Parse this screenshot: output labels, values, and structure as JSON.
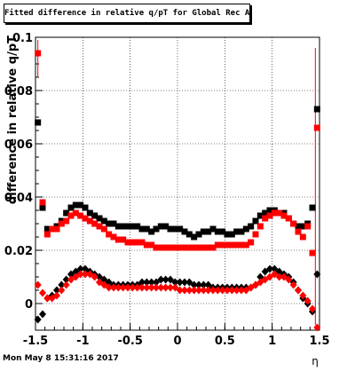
{
  "chart_data": {
    "type": "scatter",
    "title": "Fitted difference in relative q/pT for Global Rec All EtapT",
    "xlabel": "η",
    "ylabel": "difference in relative q/pT",
    "xlim": [
      -1.5,
      1.5
    ],
    "ylim": [
      -0.01,
      0.1
    ],
    "x_ticks": [
      -1.5,
      -1,
      -0.5,
      0,
      0.5,
      1,
      1.5
    ],
    "x_tick_labels": [
      "-1.5",
      "-1",
      "-0.5",
      "0",
      "0.5",
      "1",
      "1.5"
    ],
    "y_ticks": [
      0,
      0.02,
      0.04,
      0.06,
      0.08,
      0.1
    ],
    "y_tick_labels": [
      "0",
      "0.02",
      "0.04",
      "0.06",
      "0.08",
      "0.1"
    ],
    "grid": true,
    "series": [
      {
        "color": "#000000",
        "marker": "square",
        "x": [
          -1.475,
          -1.425,
          -1.375,
          -1.325,
          -1.275,
          -1.225,
          -1.175,
          -1.125,
          -1.075,
          -1.025,
          -0.975,
          -0.925,
          -0.875,
          -0.825,
          -0.775,
          -0.725,
          -0.675,
          -0.625,
          -0.575,
          -0.525,
          -0.475,
          -0.425,
          -0.375,
          -0.325,
          -0.275,
          -0.225,
          -0.175,
          -0.125,
          -0.075,
          -0.025,
          0.025,
          0.075,
          0.125,
          0.175,
          0.225,
          0.275,
          0.325,
          0.375,
          0.425,
          0.475,
          0.525,
          0.575,
          0.625,
          0.675,
          0.725,
          0.775,
          0.825,
          0.875,
          0.925,
          0.975,
          1.025,
          1.075,
          1.125,
          1.175,
          1.225,
          1.275,
          1.325,
          1.375,
          1.425,
          1.475
        ],
        "y": [
          0.068,
          0.036,
          0.028,
          0.028,
          0.029,
          0.031,
          0.034,
          0.036,
          0.037,
          0.037,
          0.036,
          0.034,
          0.033,
          0.032,
          0.031,
          0.03,
          0.03,
          0.029,
          0.029,
          0.029,
          0.029,
          0.029,
          0.028,
          0.028,
          0.027,
          0.028,
          0.029,
          0.029,
          0.028,
          0.028,
          0.028,
          0.027,
          0.026,
          0.025,
          0.026,
          0.027,
          0.027,
          0.028,
          0.027,
          0.027,
          0.026,
          0.026,
          0.027,
          0.027,
          0.028,
          0.029,
          0.031,
          0.033,
          0.034,
          0.035,
          0.035,
          0.034,
          0.034,
          0.032,
          0.03,
          0.029,
          0.029,
          0.03,
          0.036,
          0.073
        ]
      },
      {
        "color": "#ff0000",
        "marker": "square",
        "x": [
          -1.475,
          -1.425,
          -1.375,
          -1.325,
          -1.275,
          -1.225,
          -1.175,
          -1.125,
          -1.075,
          -1.025,
          -0.975,
          -0.925,
          -0.875,
          -0.825,
          -0.775,
          -0.725,
          -0.675,
          -0.625,
          -0.575,
          -0.525,
          -0.475,
          -0.425,
          -0.375,
          -0.325,
          -0.275,
          -0.225,
          -0.175,
          -0.125,
          -0.075,
          -0.025,
          0.025,
          0.075,
          0.125,
          0.175,
          0.225,
          0.275,
          0.325,
          0.375,
          0.425,
          0.475,
          0.525,
          0.575,
          0.625,
          0.675,
          0.725,
          0.775,
          0.825,
          0.875,
          0.925,
          0.975,
          1.025,
          1.075,
          1.125,
          1.175,
          1.225,
          1.275,
          1.325,
          1.375,
          1.425,
          1.475
        ],
        "y": [
          0.094,
          0.038,
          0.026,
          0.028,
          0.028,
          0.03,
          0.031,
          0.033,
          0.034,
          0.033,
          0.032,
          0.031,
          0.03,
          0.029,
          0.028,
          0.026,
          0.025,
          0.024,
          0.024,
          0.023,
          0.023,
          0.023,
          0.023,
          0.022,
          0.022,
          0.021,
          0.021,
          0.021,
          0.021,
          0.021,
          0.021,
          0.021,
          0.021,
          0.021,
          0.021,
          0.021,
          0.021,
          0.021,
          0.022,
          0.022,
          0.022,
          0.022,
          0.022,
          0.022,
          0.022,
          0.023,
          0.026,
          0.029,
          0.032,
          0.033,
          0.034,
          0.034,
          0.033,
          0.032,
          0.03,
          0.027,
          0.025,
          0.029,
          0.019,
          0.066
        ]
      },
      {
        "color": "#000000",
        "marker": "diamond",
        "x": [
          -1.475,
          -1.425,
          -1.375,
          -1.325,
          -1.275,
          -1.225,
          -1.175,
          -1.125,
          -1.075,
          -1.025,
          -0.975,
          -0.925,
          -0.875,
          -0.825,
          -0.775,
          -0.725,
          -0.675,
          -0.625,
          -0.575,
          -0.525,
          -0.475,
          -0.425,
          -0.375,
          -0.325,
          -0.275,
          -0.225,
          -0.175,
          -0.125,
          -0.075,
          -0.025,
          0.025,
          0.075,
          0.125,
          0.175,
          0.225,
          0.275,
          0.325,
          0.375,
          0.425,
          0.475,
          0.525,
          0.575,
          0.625,
          0.675,
          0.725,
          0.775,
          0.825,
          0.875,
          0.925,
          0.975,
          1.025,
          1.075,
          1.125,
          1.175,
          1.225,
          1.275,
          1.325,
          1.375,
          1.425,
          1.475
        ],
        "y": [
          -0.006,
          -0.004,
          0.002,
          0.003,
          0.005,
          0.007,
          0.009,
          0.011,
          0.012,
          0.013,
          0.013,
          0.012,
          0.011,
          0.01,
          0.009,
          0.008,
          0.007,
          0.007,
          0.007,
          0.007,
          0.007,
          0.007,
          0.008,
          0.008,
          0.008,
          0.008,
          0.009,
          0.009,
          0.009,
          0.008,
          0.008,
          0.008,
          0.008,
          0.007,
          0.007,
          0.007,
          0.007,
          0.006,
          0.006,
          0.006,
          0.006,
          0.006,
          0.006,
          0.006,
          0.006,
          0.006,
          0.007,
          0.01,
          0.012,
          0.013,
          0.013,
          0.012,
          0.011,
          0.01,
          0.008,
          0.005,
          0.002,
          0.0,
          -0.003,
          0.011
        ]
      },
      {
        "color": "#ff0000",
        "marker": "diamond",
        "x": [
          -1.475,
          -1.425,
          -1.375,
          -1.325,
          -1.275,
          -1.225,
          -1.175,
          -1.125,
          -1.075,
          -1.025,
          -0.975,
          -0.925,
          -0.875,
          -0.825,
          -0.775,
          -0.725,
          -0.675,
          -0.625,
          -0.575,
          -0.525,
          -0.475,
          -0.425,
          -0.375,
          -0.325,
          -0.275,
          -0.225,
          -0.175,
          -0.125,
          -0.075,
          -0.025,
          0.025,
          0.075,
          0.125,
          0.175,
          0.225,
          0.275,
          0.325,
          0.375,
          0.425,
          0.475,
          0.525,
          0.575,
          0.625,
          0.675,
          0.725,
          0.775,
          0.825,
          0.875,
          0.925,
          0.975,
          1.025,
          1.075,
          1.125,
          1.175,
          1.225,
          1.275,
          1.325,
          1.375,
          1.425,
          1.475
        ],
        "y": [
          0.007,
          0.004,
          0.002,
          0.002,
          0.003,
          0.005,
          0.007,
          0.009,
          0.01,
          0.011,
          0.011,
          0.011,
          0.01,
          0.008,
          0.007,
          0.006,
          0.006,
          0.006,
          0.006,
          0.006,
          0.006,
          0.006,
          0.006,
          0.006,
          0.006,
          0.006,
          0.006,
          0.006,
          0.006,
          0.006,
          0.005,
          0.005,
          0.005,
          0.005,
          0.005,
          0.005,
          0.005,
          0.005,
          0.005,
          0.005,
          0.005,
          0.005,
          0.005,
          0.005,
          0.005,
          0.006,
          0.007,
          0.008,
          0.009,
          0.01,
          0.011,
          0.01,
          0.01,
          0.009,
          0.007,
          0.005,
          0.003,
          0.001,
          -0.002,
          -0.009
        ]
      }
    ]
  },
  "footer": {
    "timestamp": "Mon May  8 15:31:16 2017"
  }
}
